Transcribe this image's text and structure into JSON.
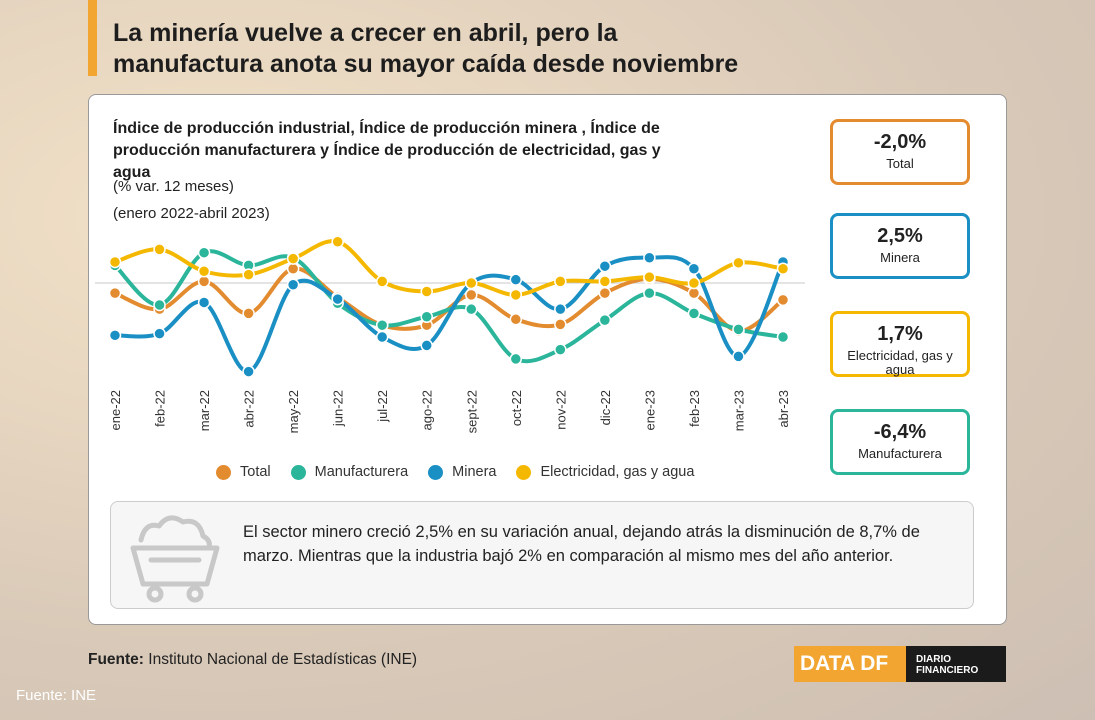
{
  "header": {
    "title": "La minería vuelve a crecer en abril, pero la manufactura anota su mayor caída desde noviembre"
  },
  "chart_data": {
    "type": "line",
    "title": "Índice de producción industrial, Índice de producción minera , Índice de producción manufacturera  y Índice de producción de electricidad, gas y agua",
    "subtitle": "(% var. 12 meses)",
    "period": "(enero 2022-abril 2023)",
    "categories": [
      "ene-22",
      "feb-22",
      "mar-22",
      "abr-22",
      "may-22",
      "jun-22",
      "jul-22",
      "ago-22",
      "sept-22",
      "oct-22",
      "nov-22",
      "dic-22",
      "ene-23",
      "feb-23",
      "mar-23",
      "abr-23"
    ],
    "ylim": [
      -11.5,
      5.7
    ],
    "series": [
      {
        "name": "Total",
        "color": "#e38b2f",
        "values": [
          -1.2,
          -3.1,
          0.2,
          -3.6,
          1.7,
          -1.7,
          -5.0,
          -5.0,
          -1.4,
          -4.3,
          -4.9,
          -1.2,
          0.5,
          -1.2,
          -5.7,
          -2.0
        ]
      },
      {
        "name": "Manufacturera",
        "color": "#2bb59a",
        "values": [
          2.1,
          -2.6,
          3.6,
          2.1,
          3.0,
          -2.4,
          -5.0,
          -4.0,
          -3.1,
          -9.0,
          -7.9,
          -4.4,
          -1.2,
          -3.6,
          -5.5,
          -6.4
        ]
      },
      {
        "name": "Minera",
        "color": "#1a8fc4",
        "values": [
          -6.2,
          -6.0,
          -2.3,
          -10.5,
          -0.2,
          -1.9,
          -6.4,
          -7.4,
          0.0,
          0.4,
          -3.1,
          2.0,
          3.0,
          1.7,
          -8.7,
          2.5
        ]
      },
      {
        "name": "Electricidad, gas y agua",
        "color": "#f5b800",
        "values": [
          2.5,
          4.0,
          1.4,
          1.0,
          2.9,
          4.9,
          0.2,
          -1.0,
          0.0,
          -1.4,
          0.2,
          0.2,
          0.7,
          0.0,
          2.4,
          1.7
        ]
      }
    ]
  },
  "cards": [
    {
      "value": "-2,0%",
      "label": "Total",
      "color": "#e38b2f"
    },
    {
      "value": "2,5%",
      "label": "Minera",
      "color": "#1a8fc4"
    },
    {
      "value": "1,7%",
      "label": "Electricidad, gas y agua",
      "color": "#f5b800"
    },
    {
      "value": "-6,4%",
      "label": "Manufacturera",
      "color": "#2bb59a"
    }
  ],
  "note": {
    "text": "El sector minero creció 2,5% en su variación anual, dejando atrás la disminución de 8,7% de marzo. Mientras que la industria bajó 2% en comparación al mismo mes del año anterior."
  },
  "source": {
    "label": "Fuente:",
    "text": "Instituto Nacional de Estadísticas (INE)"
  },
  "logo": {
    "brand": "DATA DF",
    "name": "DIARIO FINANCIERO"
  },
  "footer": "Fuente: INE"
}
